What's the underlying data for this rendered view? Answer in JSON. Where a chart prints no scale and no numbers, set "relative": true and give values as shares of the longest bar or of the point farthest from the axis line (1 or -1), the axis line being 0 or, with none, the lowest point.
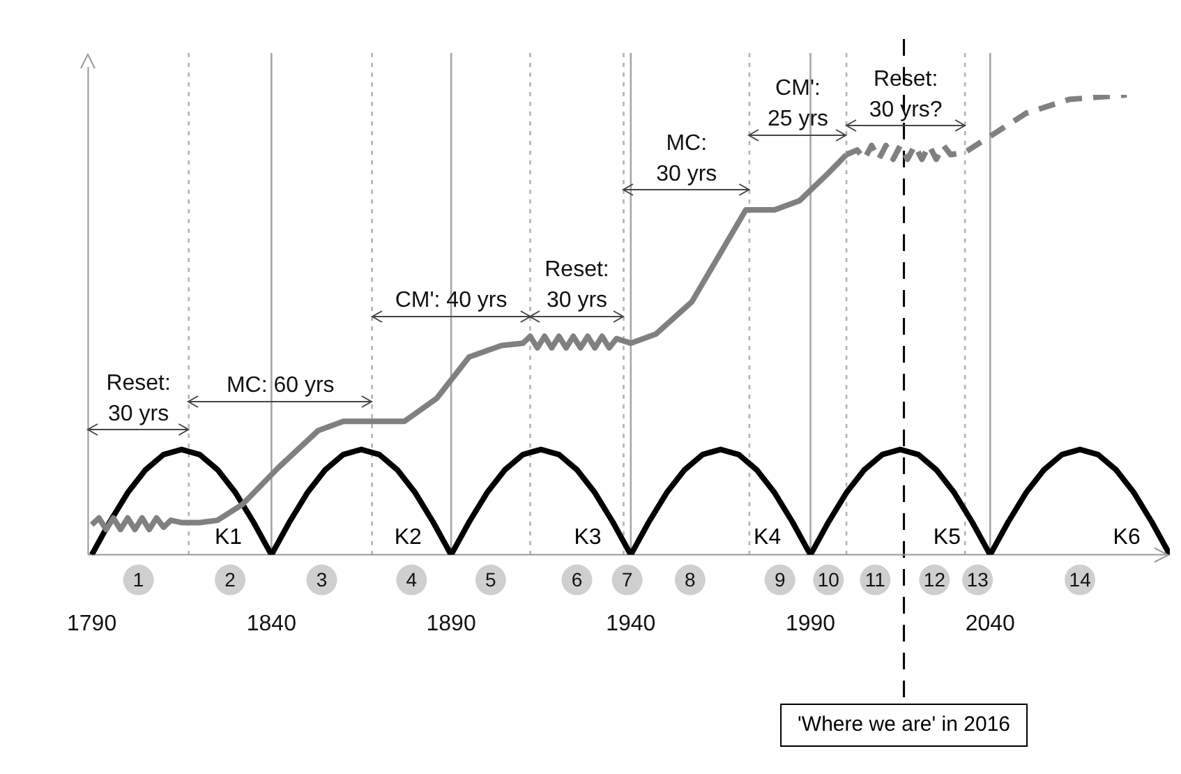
{
  "chart_data": {
    "type": "line",
    "relative": true,
    "xlim": [
      1789,
      2090
    ],
    "xticks": [
      1790,
      1840,
      1890,
      1940,
      1990,
      2040
    ],
    "grid": false,
    "legend": false,
    "series": [
      {
        "name": "K1",
        "color": "#000000",
        "x": [
          1790,
          1795,
          1800,
          1805,
          1810,
          1815,
          1820,
          1825,
          1830,
          1835,
          1840
        ],
        "values": [
          0,
          0.071,
          0.135,
          0.185,
          0.218,
          0.229,
          0.218,
          0.185,
          0.135,
          0.071,
          0
        ]
      },
      {
        "name": "K2",
        "color": "#000000",
        "x": [
          1840,
          1845,
          1850,
          1855,
          1860,
          1865,
          1870,
          1875,
          1880,
          1885,
          1890
        ],
        "values": [
          0,
          0.071,
          0.135,
          0.185,
          0.218,
          0.229,
          0.218,
          0.185,
          0.135,
          0.071,
          0
        ]
      },
      {
        "name": "K3",
        "color": "#000000",
        "x": [
          1890,
          1895,
          1900,
          1905,
          1910,
          1915,
          1920,
          1925,
          1930,
          1935,
          1940
        ],
        "values": [
          0,
          0.071,
          0.135,
          0.185,
          0.218,
          0.229,
          0.218,
          0.185,
          0.135,
          0.071,
          0
        ]
      },
      {
        "name": "K4",
        "color": "#000000",
        "x": [
          1940,
          1945,
          1950,
          1955,
          1960,
          1965,
          1970,
          1975,
          1980,
          1985,
          1990
        ],
        "values": [
          0,
          0.071,
          0.135,
          0.185,
          0.218,
          0.229,
          0.218,
          0.185,
          0.135,
          0.071,
          0
        ]
      },
      {
        "name": "K5",
        "color": "#000000",
        "x": [
          1990,
          1995,
          2000,
          2005,
          2010,
          2015,
          2020,
          2025,
          2030,
          2035,
          2040
        ],
        "values": [
          0,
          0.071,
          0.135,
          0.185,
          0.218,
          0.229,
          0.218,
          0.185,
          0.135,
          0.071,
          0
        ]
      },
      {
        "name": "K6",
        "color": "#000000",
        "x": [
          2040,
          2045,
          2050,
          2055,
          2060,
          2065,
          2070,
          2075,
          2080,
          2085,
          2090
        ],
        "values": [
          0,
          0.071,
          0.135,
          0.185,
          0.218,
          0.229,
          0.218,
          0.185,
          0.135,
          0.071,
          0
        ]
      },
      {
        "color": "#808080",
        "line_style": "solid",
        "x": [
          1790,
          1792,
          1794,
          1796,
          1798,
          1800,
          1802,
          1804,
          1806,
          1808,
          1810,
          1812,
          1815,
          1820,
          1825,
          1832,
          1842,
          1853,
          1860,
          1870,
          1877,
          1886,
          1895,
          1904,
          1910,
          1912,
          1914,
          1916,
          1918,
          1920,
          1922,
          1924,
          1926,
          1928,
          1930,
          1932,
          1934,
          1936,
          1940,
          1947,
          1957,
          1966,
          1972,
          1980,
          1987,
          1995,
          2000
        ],
        "values": [
          0.065,
          0.08,
          0.055,
          0.08,
          0.055,
          0.08,
          0.055,
          0.08,
          0.055,
          0.08,
          0.06,
          0.075,
          0.07,
          0.07,
          0.075,
          0.11,
          0.19,
          0.27,
          0.29,
          0.29,
          0.29,
          0.34,
          0.43,
          0.455,
          0.46,
          0.475,
          0.45,
          0.475,
          0.45,
          0.475,
          0.45,
          0.475,
          0.45,
          0.475,
          0.45,
          0.475,
          0.45,
          0.47,
          0.46,
          0.48,
          0.55,
          0.67,
          0.75,
          0.75,
          0.77,
          0.83,
          0.87
        ]
      },
      {
        "color": "#808080",
        "line_style": "dashed",
        "x": [
          2000,
          2003,
          2005,
          2007,
          2009,
          2011,
          2013,
          2015,
          2017,
          2019,
          2021,
          2023,
          2025,
          2027,
          2029,
          2033,
          2040,
          2050,
          2062,
          2078
        ],
        "values": [
          0.87,
          0.88,
          0.86,
          0.89,
          0.86,
          0.89,
          0.86,
          0.89,
          0.86,
          0.89,
          0.86,
          0.89,
          0.86,
          0.89,
          0.87,
          0.875,
          0.91,
          0.96,
          0.99,
          1.0
        ]
      }
    ],
    "ref_lines": [
      {
        "axis": "x",
        "value": 1840,
        "color": "#a6a6a6",
        "line_style": "solid"
      },
      {
        "axis": "x",
        "value": 1890,
        "color": "#a6a6a6",
        "line_style": "solid"
      },
      {
        "axis": "x",
        "value": 1940,
        "color": "#a6a6a6",
        "line_style": "solid"
      },
      {
        "axis": "x",
        "value": 1990,
        "color": "#a6a6a6",
        "line_style": "solid"
      },
      {
        "axis": "x",
        "value": 2040,
        "color": "#a6a6a6",
        "line_style": "solid"
      },
      {
        "axis": "x",
        "value": 1817,
        "color": "#b3b3b3",
        "line_style": "dotted"
      },
      {
        "axis": "x",
        "value": 1868,
        "color": "#b3b3b3",
        "line_style": "dotted"
      },
      {
        "axis": "x",
        "value": 1912,
        "color": "#b3b3b3",
        "line_style": "dotted"
      },
      {
        "axis": "x",
        "value": 1938,
        "color": "#b3b3b3",
        "line_style": "dotted"
      },
      {
        "axis": "x",
        "value": 1973,
        "color": "#b3b3b3",
        "line_style": "dotted"
      },
      {
        "axis": "x",
        "value": 2000,
        "color": "#b3b3b3",
        "line_style": "dotted"
      },
      {
        "axis": "x",
        "value": 2033,
        "color": "#b3b3b3",
        "line_style": "dotted"
      },
      {
        "axis": "x",
        "value": 2016,
        "color": "#000000",
        "line_style": "dashed",
        "label": "'Where we are' in 2016"
      }
    ],
    "annotations": [
      "Reset:\n30 yrs",
      "MC: 60 yrs",
      "CM': 40 yrs",
      "Reset:\n30 yrs",
      "MC:\n30 yrs",
      "CM':\n25 yrs",
      "Reset:\n30 yrs?",
      "1",
      "2",
      "3",
      "4",
      "5",
      "6",
      "7",
      "8",
      "9",
      "10",
      "11",
      "12",
      "13",
      "14"
    ]
  }
}
